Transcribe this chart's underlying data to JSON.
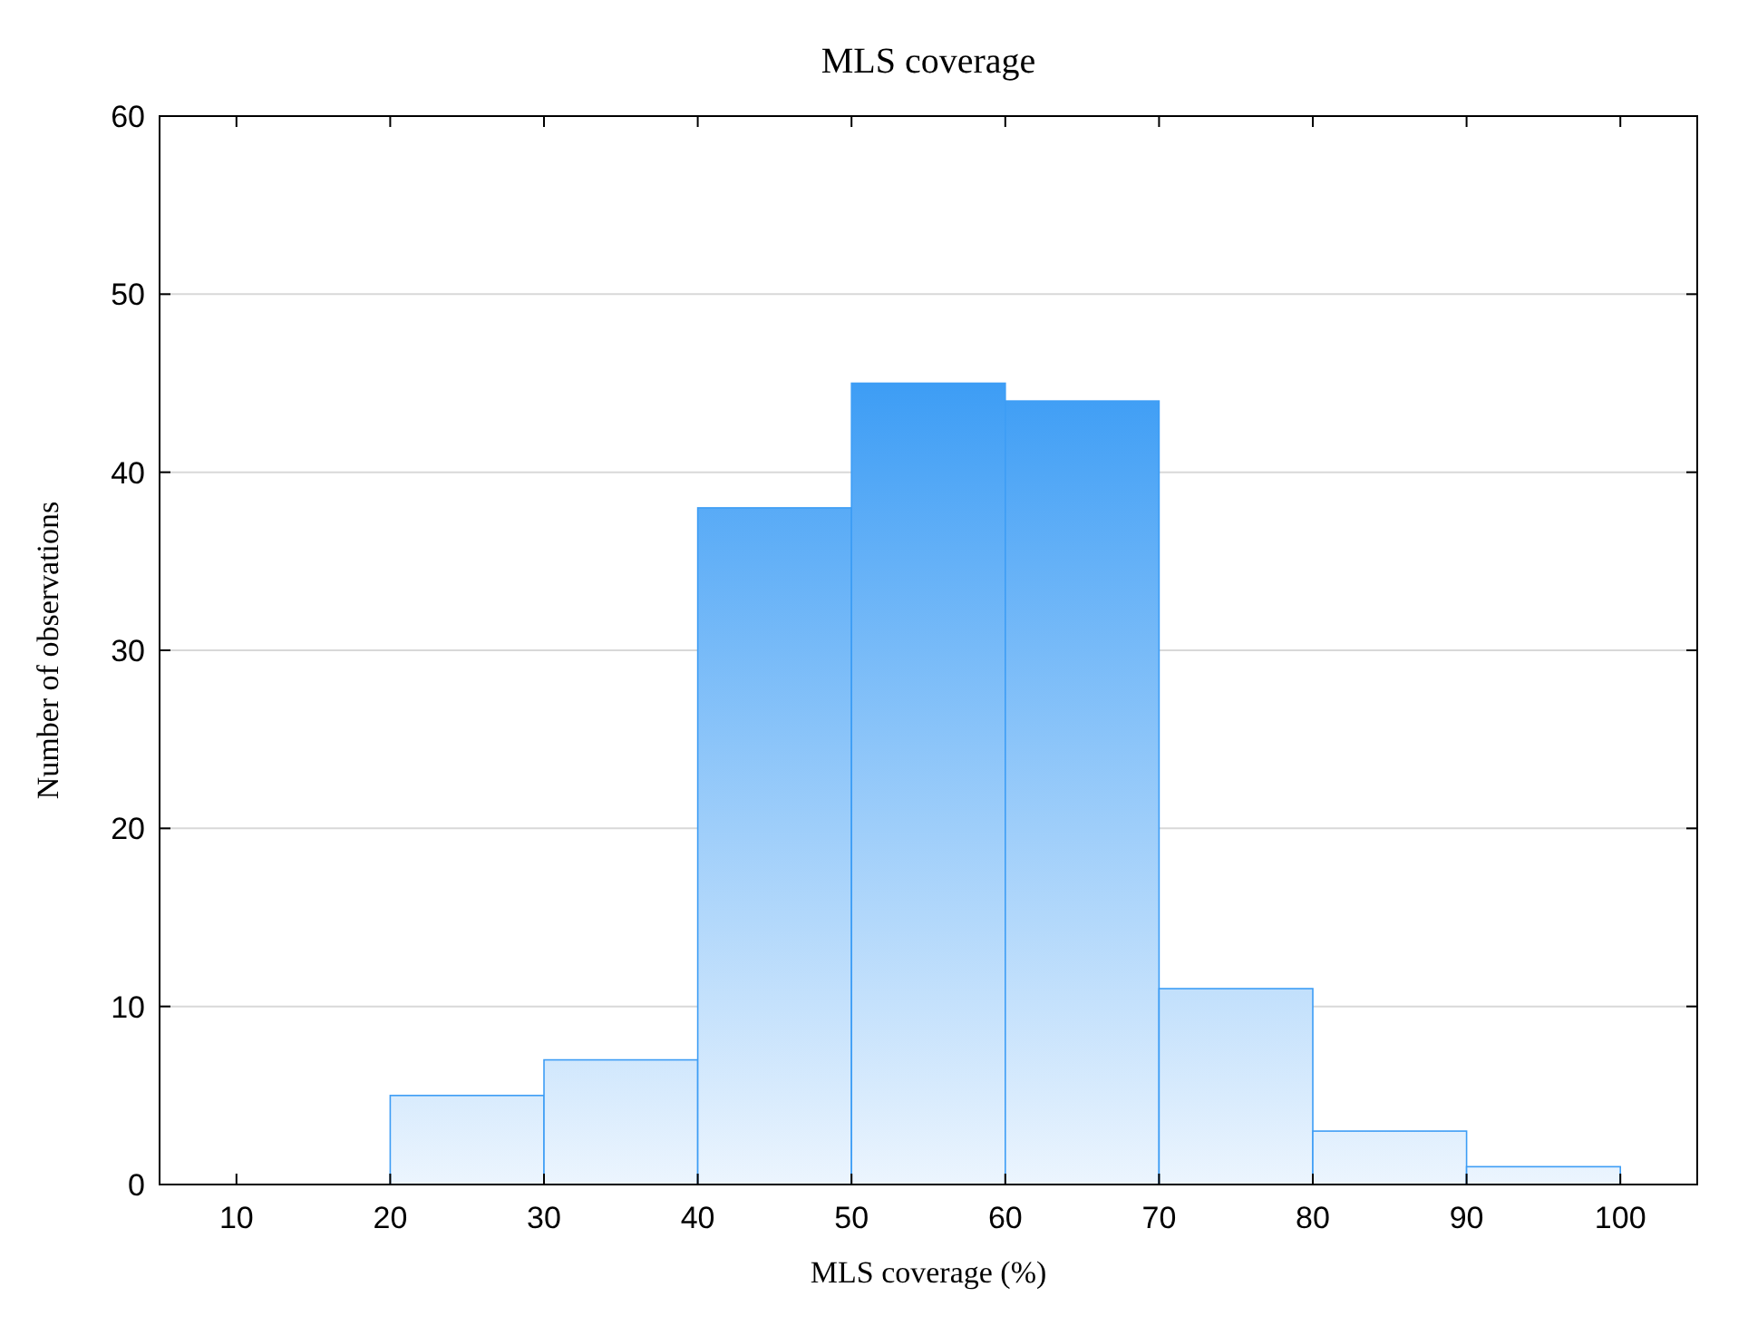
{
  "chart_data": {
    "type": "histogram",
    "title": "MLS coverage",
    "xlabel": "MLS coverage (%)",
    "ylabel": "Number of observations",
    "bins": [
      20,
      30,
      40,
      50,
      60,
      70,
      80,
      90,
      100
    ],
    "values": [
      5,
      7,
      38,
      45,
      44,
      11,
      3,
      1
    ],
    "color": "#3d9df5",
    "xlim": [
      5,
      105
    ],
    "xticks": [
      10,
      20,
      30,
      40,
      50,
      60,
      70,
      80,
      90,
      100
    ],
    "ylim": [
      0,
      60
    ],
    "yticks": [
      0,
      10,
      20,
      30,
      40,
      50,
      60
    ],
    "grid": "y"
  }
}
